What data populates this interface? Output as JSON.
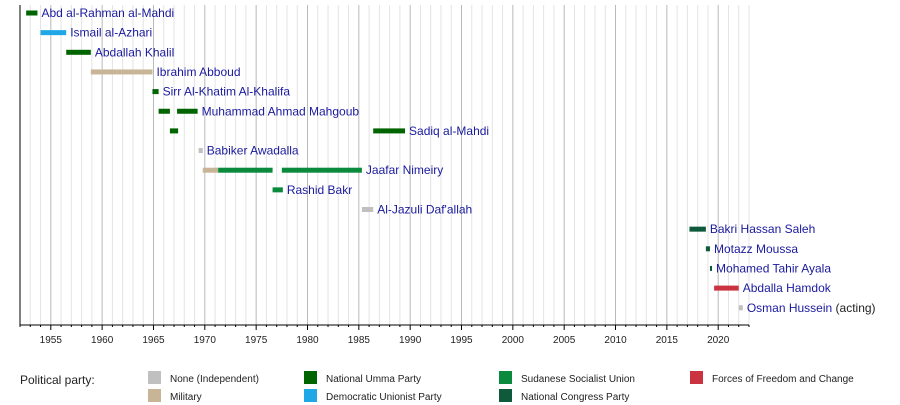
{
  "chart_data": {
    "type": "timeline",
    "xlim": [
      1952,
      2023
    ],
    "x_ticks": [
      1955,
      1960,
      1965,
      1970,
      1975,
      1980,
      1985,
      1990,
      1995,
      2000,
      2005,
      2010,
      2015,
      2020
    ],
    "grid": "vertical, yearly",
    "legend_title": "Political party:",
    "legend_position": "bottom",
    "parties": [
      {
        "key": "none",
        "name": "None (Independent)",
        "color": "#c0c0c0"
      },
      {
        "key": "military",
        "name": "Military",
        "color": "#c8b597"
      },
      {
        "key": "umma",
        "name": "National Umma Party",
        "color": "#006400"
      },
      {
        "key": "dup",
        "name": "Democratic Unionist Party",
        "color": "#20a8e6"
      },
      {
        "key": "ssu",
        "name": "Sudanese Socialist Union",
        "color": "#0a8a3c"
      },
      {
        "key": "ncp",
        "name": "National Congress Party",
        "color": "#0e5a3a"
      },
      {
        "key": "ffc",
        "name": "Forces of Freedom and Change",
        "color": "#cc3340"
      }
    ],
    "rows": [
      {
        "label": "Abd al-Rahman al-Mahdi",
        "segments": [
          {
            "start": 1952.6,
            "end": 1953.7,
            "party": "umma"
          }
        ]
      },
      {
        "label": "Ismail al-Azhari",
        "segments": [
          {
            "start": 1954.0,
            "end": 1956.5,
            "party": "dup"
          }
        ]
      },
      {
        "label": "Abdallah Khalil",
        "segments": [
          {
            "start": 1956.5,
            "end": 1958.9,
            "party": "umma"
          }
        ]
      },
      {
        "label": "Ibrahim Abboud",
        "segments": [
          {
            "start": 1958.9,
            "end": 1964.9,
            "party": "military"
          }
        ]
      },
      {
        "label": "Sirr Al-Khatim Al-Khalifa",
        "segments": [
          {
            "start": 1964.9,
            "end": 1965.5,
            "party": "umma"
          }
        ]
      },
      {
        "label": "Muhammad Ahmad Mahgoub",
        "segments": [
          {
            "start": 1965.5,
            "end": 1966.6,
            "party": "umma"
          },
          {
            "start": 1967.3,
            "end": 1969.3,
            "party": "umma"
          }
        ]
      },
      {
        "label": "Sadiq al-Mahdi",
        "segments": [
          {
            "start": 1966.6,
            "end": 1967.4,
            "party": "umma"
          },
          {
            "start": 1986.4,
            "end": 1989.5,
            "party": "umma"
          }
        ]
      },
      {
        "label": "Babiker Awadalla",
        "segments": [
          {
            "start": 1969.4,
            "end": 1969.8,
            "party": "none"
          }
        ]
      },
      {
        "label": "Jaafar Nimeiry",
        "segments": [
          {
            "start": 1969.8,
            "end": 1971.3,
            "party": "military"
          },
          {
            "start": 1971.3,
            "end": 1976.6,
            "party": "ssu"
          },
          {
            "start": 1977.5,
            "end": 1985.3,
            "party": "ssu"
          }
        ]
      },
      {
        "label": "Rashid Bakr",
        "segments": [
          {
            "start": 1976.6,
            "end": 1977.6,
            "party": "ssu"
          }
        ]
      },
      {
        "label": "Al-Jazuli Daf'allah",
        "segments": [
          {
            "start": 1985.3,
            "end": 1986.4,
            "party": "none"
          }
        ]
      },
      {
        "label": "Bakri Hassan Saleh",
        "segments": [
          {
            "start": 2017.2,
            "end": 2018.8,
            "party": "ncp"
          }
        ]
      },
      {
        "label": "Motazz Moussa",
        "segments": [
          {
            "start": 2018.8,
            "end": 2019.2,
            "party": "ncp"
          }
        ]
      },
      {
        "label": "Mohamed Tahir Ayala",
        "segments": [
          {
            "start": 2019.2,
            "end": 2019.4,
            "party": "ncp"
          }
        ]
      },
      {
        "label": "Abdalla Hamdok",
        "segments": [
          {
            "start": 2019.6,
            "end": 2022.0,
            "party": "ffc"
          }
        ]
      },
      {
        "label": "Osman Hussein",
        "note": "(acting)",
        "segments": [
          {
            "start": 2022.0,
            "end": 2022.4,
            "party": "none"
          }
        ]
      }
    ]
  }
}
